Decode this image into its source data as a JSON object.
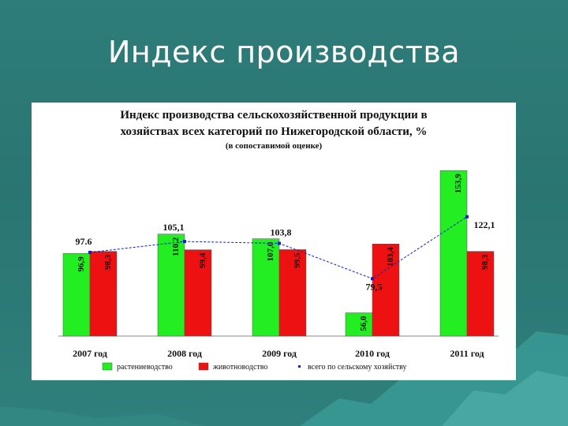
{
  "slide": {
    "title": "Индекс производства"
  },
  "colors": {
    "background": "#2a7572",
    "crop": "#22ee22",
    "livestock": "#ee1111",
    "total": "#1122cc"
  },
  "chart_data": {
    "type": "bar",
    "title_line1": "Индекс производства сельскохозяйственной продукции в",
    "title_line2": "хозяйствах всех категорий по Нижегородской области, %",
    "subtitle": "(в сопоставимой оценке)",
    "categories": [
      "2007 год",
      "2008 год",
      "2009 год",
      "2010 год",
      "2011 год"
    ],
    "series": [
      {
        "name": "растениеводство",
        "color": "#22ee22",
        "values": [
          96.9,
          110.2,
          107.0,
          56.0,
          153.9
        ],
        "labels": [
          "96,9",
          "110,2",
          "107,0",
          "56,0",
          "153,9"
        ]
      },
      {
        "name": "животноводство",
        "color": "#ee1111",
        "values": [
          98.3,
          99.4,
          99.5,
          103.4,
          98.3
        ],
        "labels": [
          "98,3",
          "99,4",
          "99,5",
          "103,4",
          "98,3"
        ]
      }
    ],
    "line": {
      "name": "всего по сельскому хозяйству",
      "color": "#1122cc",
      "values": [
        97.6,
        105.1,
        103.8,
        79.5,
        122.1
      ],
      "labels": [
        "97.6",
        "105,1",
        "103,8",
        "79,5",
        "122,1"
      ]
    },
    "ylim": [
      40,
      160
    ],
    "grid": false,
    "legend_position": "bottom"
  }
}
